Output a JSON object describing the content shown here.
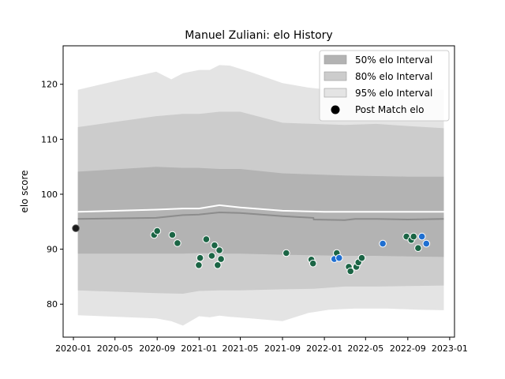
{
  "chart_data": {
    "type": "line",
    "title": "Manuel Zuliani: elo History",
    "xlabel": "",
    "ylabel": "elo score",
    "xlim": [
      "2019-12-02",
      "2023-01-15"
    ],
    "ylim": [
      74,
      127
    ],
    "x_ticks": [
      "2020-01-01",
      "2020-05-01",
      "2020-09-01",
      "2021-01-01",
      "2021-05-01",
      "2021-09-01",
      "2022-01-01",
      "2022-05-01",
      "2022-09-01",
      "2023-01-01"
    ],
    "x_tick_labels": [
      "2020-01",
      "2020-05",
      "2020-09",
      "2021-01",
      "2021-05",
      "2021-09",
      "2022-01",
      "2022-05",
      "2022-09",
      "2023-01"
    ],
    "y_ticks": [
      80,
      90,
      100,
      110,
      120
    ],
    "y_tick_labels": [
      "80",
      "90",
      "100",
      "110",
      "120"
    ],
    "grid": false,
    "legend_position": "top-right",
    "legend": [
      {
        "label": "50% elo Interval",
        "kind": "patch",
        "color": "#b3b3b3"
      },
      {
        "label": "80% elo Interval",
        "kind": "patch",
        "color": "#cccccc"
      },
      {
        "label": "95% elo Interval",
        "kind": "patch",
        "color": "#e4e4e4"
      },
      {
        "label": "Post Match elo",
        "kind": "marker",
        "color": "#000000"
      }
    ],
    "bands": [
      {
        "name": "95% elo Interval",
        "color": "#e4e4e4",
        "x": [
          "2020-01-14",
          "2020-08-29",
          "2020-10-12",
          "2020-11-15",
          "2021-01-01",
          "2021-02-01",
          "2021-03-01",
          "2021-04-01",
          "2021-06-01",
          "2021-09-01",
          "2021-11-15",
          "2022-01-15",
          "2022-04-01",
          "2022-07-01",
          "2022-10-01",
          "2022-12-15"
        ],
        "upper": [
          119.0,
          122.3,
          120.9,
          122.0,
          122.6,
          122.6,
          123.5,
          123.4,
          122.2,
          120.2,
          119.4,
          119.0,
          119.0,
          119.0,
          119.0,
          119.0
        ],
        "lower": [
          78.0,
          77.4,
          76.9,
          76.1,
          77.8,
          77.6,
          77.9,
          77.7,
          77.4,
          76.9,
          78.4,
          79.0,
          79.2,
          79.2,
          79.0,
          78.9
        ]
      },
      {
        "name": "80% elo Interval",
        "color": "#cccccc",
        "x": [
          "2020-01-14",
          "2020-08-29",
          "2020-11-15",
          "2021-01-01",
          "2021-03-01",
          "2021-05-01",
          "2021-09-01",
          "2021-11-30",
          "2022-03-01",
          "2022-06-01",
          "2022-09-01",
          "2022-12-15"
        ],
        "upper": [
          112.2,
          114.2,
          114.6,
          114.6,
          115.0,
          115.0,
          113.0,
          112.8,
          112.6,
          112.8,
          112.4,
          112.0
        ],
        "lower": [
          82.5,
          82.0,
          81.9,
          82.4,
          82.5,
          82.5,
          82.7,
          82.8,
          83.2,
          83.2,
          83.3,
          83.4
        ]
      },
      {
        "name": "50% elo Interval",
        "color": "#b3b3b3",
        "x": [
          "2020-01-14",
          "2020-08-29",
          "2020-11-15",
          "2021-01-01",
          "2021-03-01",
          "2021-05-01",
          "2021-09-01",
          "2021-11-30",
          "2022-03-01",
          "2022-06-01",
          "2022-09-01",
          "2022-12-15"
        ],
        "upper": [
          104.1,
          105.0,
          104.8,
          104.8,
          104.6,
          104.6,
          103.8,
          103.6,
          103.4,
          103.3,
          103.2,
          103.2
        ],
        "lower": [
          89.2,
          89.2,
          89.2,
          89.3,
          89.2,
          89.2,
          89.0,
          88.9,
          88.8,
          88.8,
          88.7,
          88.6
        ]
      }
    ],
    "series": [
      {
        "role": "band_mean",
        "color": "#8c8c8c",
        "x": [
          "2020-01-14",
          "2020-08-29",
          "2020-11-15",
          "2021-01-01",
          "2021-03-01",
          "2021-05-01",
          "2021-09-01",
          "2021-11-30",
          "2021-12-01",
          "2022-03-01",
          "2022-04-01",
          "2022-06-01",
          "2022-09-01",
          "2022-12-15"
        ],
        "values": [
          95.5,
          95.7,
          96.2,
          96.3,
          96.7,
          96.6,
          96.0,
          95.7,
          95.4,
          95.3,
          95.5,
          95.5,
          95.4,
          95.5
        ]
      },
      {
        "role": "elo_estimate",
        "color": "#ffffff",
        "x": [
          "2020-01-14",
          "2020-08-29",
          "2020-11-15",
          "2021-01-01",
          "2021-03-01",
          "2021-05-01",
          "2021-09-01",
          "2022-01-01",
          "2022-04-01",
          "2022-09-01",
          "2022-12-15"
        ],
        "values": [
          96.8,
          97.2,
          97.4,
          97.4,
          98.0,
          97.6,
          97.0,
          96.8,
          96.8,
          96.8,
          96.8
        ]
      },
      {
        "name": "Post Match elo",
        "type": "scatter",
        "points": [
          {
            "x": "2020-01-08",
            "y": 93.8,
            "color": "#1a1a1a"
          },
          {
            "x": "2020-08-23",
            "y": 92.6,
            "color": "#1b6545"
          },
          {
            "x": "2020-09-01",
            "y": 93.3,
            "color": "#1b6545"
          },
          {
            "x": "2020-10-15",
            "y": 92.6,
            "color": "#1b6545"
          },
          {
            "x": "2020-10-30",
            "y": 91.1,
            "color": "#1b6545"
          },
          {
            "x": "2020-12-31",
            "y": 87.1,
            "color": "#1b6545"
          },
          {
            "x": "2021-01-04",
            "y": 88.4,
            "color": "#1b6545"
          },
          {
            "x": "2021-01-22",
            "y": 91.8,
            "color": "#1b6545"
          },
          {
            "x": "2021-02-07",
            "y": 88.8,
            "color": "#1b6545"
          },
          {
            "x": "2021-02-15",
            "y": 90.7,
            "color": "#1b6545"
          },
          {
            "x": "2021-02-24",
            "y": 87.1,
            "color": "#1b6545"
          },
          {
            "x": "2021-03-01",
            "y": 89.8,
            "color": "#1b6545"
          },
          {
            "x": "2021-03-06",
            "y": 88.2,
            "color": "#1b6545"
          },
          {
            "x": "2021-09-12",
            "y": 89.3,
            "color": "#1b6545"
          },
          {
            "x": "2021-11-24",
            "y": 88.1,
            "color": "#1b6545"
          },
          {
            "x": "2021-11-29",
            "y": 87.4,
            "color": "#1b6545"
          },
          {
            "x": "2022-01-30",
            "y": 88.2,
            "color": "#1f6fd1"
          },
          {
            "x": "2022-02-06",
            "y": 89.3,
            "color": "#1b6545"
          },
          {
            "x": "2022-02-13",
            "y": 88.4,
            "color": "#1f6fd1"
          },
          {
            "x": "2022-03-13",
            "y": 86.8,
            "color": "#1b6545"
          },
          {
            "x": "2022-03-18",
            "y": 86.0,
            "color": "#1b6545"
          },
          {
            "x": "2022-04-04",
            "y": 86.8,
            "color": "#1b6545"
          },
          {
            "x": "2022-04-10",
            "y": 87.6,
            "color": "#1b6545"
          },
          {
            "x": "2022-04-20",
            "y": 88.4,
            "color": "#1b6545"
          },
          {
            "x": "2022-06-20",
            "y": 91.0,
            "color": "#1f6fd1"
          },
          {
            "x": "2022-08-28",
            "y": 92.3,
            "color": "#1b6545"
          },
          {
            "x": "2022-09-11",
            "y": 91.7,
            "color": "#1b6545"
          },
          {
            "x": "2022-09-18",
            "y": 92.3,
            "color": "#1b6545"
          },
          {
            "x": "2022-10-01",
            "y": 90.2,
            "color": "#1b6545"
          },
          {
            "x": "2022-10-12",
            "y": 92.3,
            "color": "#1f6fd1"
          },
          {
            "x": "2022-10-25",
            "y": 91.0,
            "color": "#1f6fd1"
          }
        ]
      }
    ]
  }
}
